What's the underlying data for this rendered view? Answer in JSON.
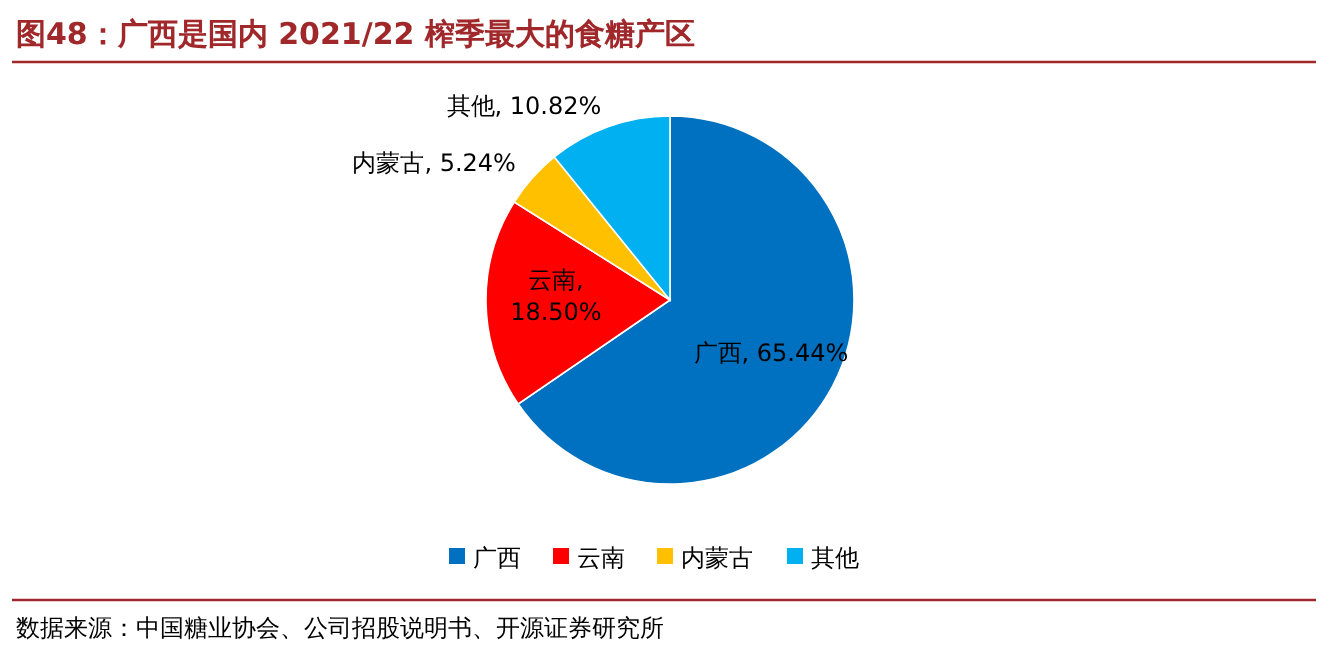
{
  "chart_data": {
    "type": "pie",
    "title": "图48：广西是国内 2021/22 榨季最大的食糖产区",
    "categories": [
      "广西",
      "云南",
      "内蒙古",
      "其他"
    ],
    "values": [
      65.44,
      18.5,
      5.24,
      10.82
    ],
    "colors": [
      "#0070c0",
      "#ff0000",
      "#ffc000",
      "#00b0f0"
    ],
    "value_labels": [
      "广西, 65.44%",
      "云南, 18.50%",
      "内蒙古, 5.24%",
      "其他, 10.82%"
    ],
    "legend": "bottom",
    "annotations": [
      "数据来源：中国糖业协会、公司招股说明书、开源证券研究所"
    ]
  }
}
